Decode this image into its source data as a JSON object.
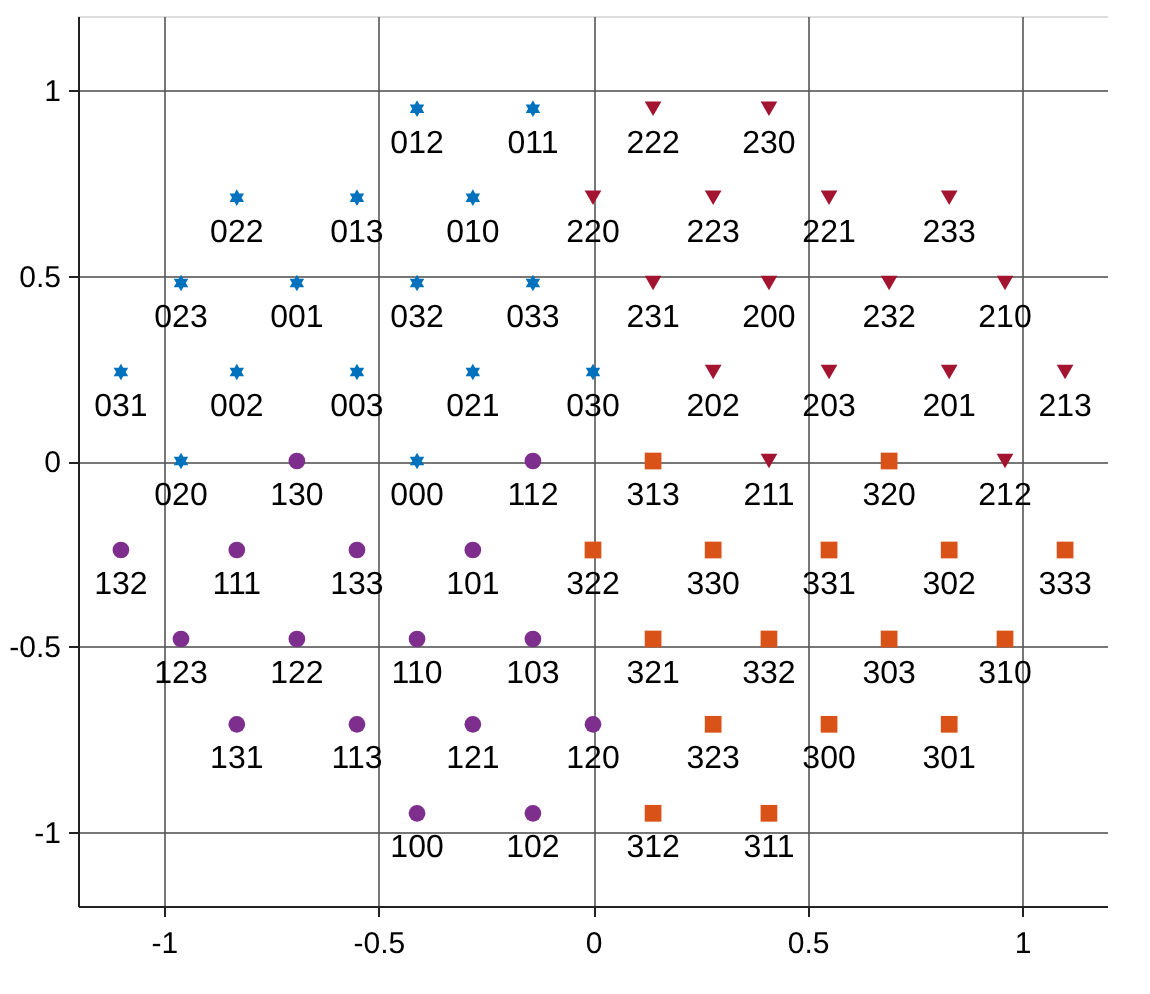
{
  "chart_data": {
    "type": "scatter",
    "xlim": [
      -1.2,
      1.2
    ],
    "ylim": [
      -1.2,
      1.2
    ],
    "xticks": [
      -1,
      -0.5,
      0,
      0.5,
      1
    ],
    "yticks": [
      -1,
      -0.5,
      0,
      0.5,
      1
    ],
    "grid": true,
    "legend": false,
    "series": [
      {
        "color": "#0072bd",
        "marker": "star",
        "x": [
          -0.41,
          -0.14,
          -0.83,
          -0.55,
          -0.28,
          -0.96,
          -0.69,
          -0.41,
          -0.14,
          -1.1,
          -0.83,
          -0.55,
          -0.28,
          0,
          -0.96,
          -0.41
        ],
        "values": [
          0.95,
          0.95,
          0.71,
          0.71,
          0.71,
          0.48,
          0.48,
          0.48,
          0.48,
          0.24,
          0.24,
          0.24,
          0.24,
          0.24,
          0,
          0
        ]
      },
      {
        "color": "#7e2f8e",
        "marker": "circle",
        "x": [
          -0.69,
          -0.14,
          -1.1,
          -0.83,
          -0.55,
          -0.28,
          -0.96,
          -0.69,
          -0.41,
          -0.14,
          -0.83,
          -0.55,
          -0.28,
          0,
          -0.41,
          -0.14
        ],
        "values": [
          0,
          0,
          -0.24,
          -0.24,
          -0.24,
          -0.24,
          -0.48,
          -0.48,
          -0.48,
          -0.48,
          -0.71,
          -0.71,
          -0.71,
          -0.71,
          -0.95,
          -0.95
        ]
      },
      {
        "color": "#a2142f",
        "marker": "triangle",
        "x": [
          0.14,
          0.41,
          0,
          0.28,
          0.55,
          0.83,
          0.14,
          0.41,
          0.69,
          0.96,
          0.28,
          0.55,
          0.83,
          1.1,
          0.41,
          0.96
        ],
        "values": [
          0.95,
          0.95,
          0.71,
          0.71,
          0.71,
          0.71,
          0.48,
          0.48,
          0.48,
          0.48,
          0.24,
          0.24,
          0.24,
          0.24,
          0,
          0
        ]
      },
      {
        "color": "#d95319",
        "marker": "square",
        "x": [
          0.14,
          0.69,
          0,
          0.28,
          0.55,
          0.83,
          1.1,
          0.14,
          0.41,
          0.69,
          0.96,
          0.28,
          0.55,
          0.83,
          0.14,
          0.41
        ],
        "values": [
          0,
          0,
          -0.24,
          -0.24,
          -0.24,
          -0.24,
          -0.24,
          -0.48,
          -0.48,
          -0.48,
          -0.48,
          -0.71,
          -0.71,
          -0.71,
          -0.95,
          -0.95
        ]
      }
    ],
    "annotations": [
      {
        "text": "012",
        "x": -0.41,
        "y": 0.95
      },
      {
        "text": "011",
        "x": -0.14,
        "y": 0.95
      },
      {
        "text": "022",
        "x": -0.83,
        "y": 0.71
      },
      {
        "text": "013",
        "x": -0.55,
        "y": 0.71
      },
      {
        "text": "010",
        "x": -0.28,
        "y": 0.71
      },
      {
        "text": "023",
        "x": -0.96,
        "y": 0.48
      },
      {
        "text": "001",
        "x": -0.69,
        "y": 0.48
      },
      {
        "text": "032",
        "x": -0.41,
        "y": 0.48
      },
      {
        "text": "033",
        "x": -0.14,
        "y": 0.48
      },
      {
        "text": "031",
        "x": -1.1,
        "y": 0.24
      },
      {
        "text": "002",
        "x": -0.83,
        "y": 0.24
      },
      {
        "text": "003",
        "x": -0.55,
        "y": 0.24
      },
      {
        "text": "021",
        "x": -0.28,
        "y": 0.24
      },
      {
        "text": "030",
        "x": 0,
        "y": 0.24
      },
      {
        "text": "020",
        "x": -0.96,
        "y": 0
      },
      {
        "text": "000",
        "x": -0.41,
        "y": 0
      },
      {
        "text": "130",
        "x": -0.69,
        "y": 0
      },
      {
        "text": "112",
        "x": -0.14,
        "y": 0
      },
      {
        "text": "132",
        "x": -1.1,
        "y": -0.24
      },
      {
        "text": "111",
        "x": -0.83,
        "y": -0.24
      },
      {
        "text": "133",
        "x": -0.55,
        "y": -0.24
      },
      {
        "text": "101",
        "x": -0.28,
        "y": -0.24
      },
      {
        "text": "123",
        "x": -0.96,
        "y": -0.48
      },
      {
        "text": "122",
        "x": -0.69,
        "y": -0.48
      },
      {
        "text": "110",
        "x": -0.41,
        "y": -0.48
      },
      {
        "text": "103",
        "x": -0.14,
        "y": -0.48
      },
      {
        "text": "131",
        "x": -0.83,
        "y": -0.71
      },
      {
        "text": "113",
        "x": -0.55,
        "y": -0.71
      },
      {
        "text": "121",
        "x": -0.28,
        "y": -0.71
      },
      {
        "text": "120",
        "x": 0,
        "y": -0.71
      },
      {
        "text": "100",
        "x": -0.41,
        "y": -0.95
      },
      {
        "text": "102",
        "x": -0.14,
        "y": -0.95
      },
      {
        "text": "222",
        "x": 0.14,
        "y": 0.95
      },
      {
        "text": "230",
        "x": 0.41,
        "y": 0.95
      },
      {
        "text": "220",
        "x": 0,
        "y": 0.71
      },
      {
        "text": "223",
        "x": 0.28,
        "y": 0.71
      },
      {
        "text": "221",
        "x": 0.55,
        "y": 0.71
      },
      {
        "text": "233",
        "x": 0.83,
        "y": 0.71
      },
      {
        "text": "231",
        "x": 0.14,
        "y": 0.48
      },
      {
        "text": "200",
        "x": 0.41,
        "y": 0.48
      },
      {
        "text": "232",
        "x": 0.69,
        "y": 0.48
      },
      {
        "text": "210",
        "x": 0.96,
        "y": 0.48
      },
      {
        "text": "202",
        "x": 0.28,
        "y": 0.24
      },
      {
        "text": "203",
        "x": 0.55,
        "y": 0.24
      },
      {
        "text": "201",
        "x": 0.83,
        "y": 0.24
      },
      {
        "text": "213",
        "x": 1.1,
        "y": 0.24
      },
      {
        "text": "211",
        "x": 0.41,
        "y": 0
      },
      {
        "text": "212",
        "x": 0.96,
        "y": 0
      },
      {
        "text": "313",
        "x": 0.14,
        "y": 0
      },
      {
        "text": "320",
        "x": 0.69,
        "y": 0
      },
      {
        "text": "322",
        "x": 0,
        "y": -0.24
      },
      {
        "text": "330",
        "x": 0.28,
        "y": -0.24
      },
      {
        "text": "331",
        "x": 0.55,
        "y": -0.24
      },
      {
        "text": "302",
        "x": 0.83,
        "y": -0.24
      },
      {
        "text": "333",
        "x": 1.1,
        "y": -0.24
      },
      {
        "text": "321",
        "x": 0.14,
        "y": -0.48
      },
      {
        "text": "332",
        "x": 0.41,
        "y": -0.48
      },
      {
        "text": "303",
        "x": 0.69,
        "y": -0.48
      },
      {
        "text": "310",
        "x": 0.96,
        "y": -0.48
      },
      {
        "text": "323",
        "x": 0.28,
        "y": -0.71
      },
      {
        "text": "300",
        "x": 0.55,
        "y": -0.71
      },
      {
        "text": "301",
        "x": 0.83,
        "y": -0.71
      },
      {
        "text": "312",
        "x": 0.14,
        "y": -0.95
      },
      {
        "text": "311",
        "x": 0.41,
        "y": -0.95
      }
    ]
  }
}
